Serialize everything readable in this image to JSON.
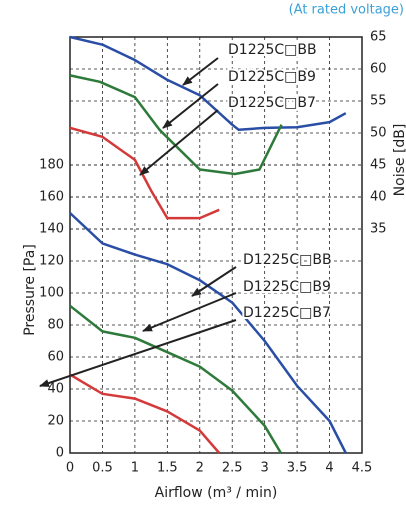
{
  "chart_data": {
    "type": "line",
    "note": "(At rated voltage)",
    "xlabel": "Airflow (m³ / min)",
    "ylabel": "Pressure [Pa]",
    "y2label": "Noise [dB]",
    "xlim": [
      0,
      4.5
    ],
    "xticks": [
      0,
      0.5,
      1,
      1.5,
      2,
      2.5,
      3,
      3.5,
      4,
      4.5
    ],
    "ylim": [
      0,
      260
    ],
    "yticks": [
      0,
      20,
      40,
      60,
      80,
      100,
      120,
      140,
      160,
      180
    ],
    "y2lim": [
      0,
      65
    ],
    "y2ticks": [
      35,
      40,
      45,
      50,
      55,
      60,
      65
    ],
    "grid": true,
    "series": [
      {
        "name": "D1225C□BB",
        "color": "#2a4ea6",
        "axis": "y2",
        "x": [
          0,
          0.5,
          1,
          1.5,
          2,
          2.5,
          2.6,
          3,
          3.5,
          4,
          4.25
        ],
        "values": [
          65,
          63.8,
          61.4,
          58.3,
          55.9,
          51.3,
          50.5,
          50.8,
          50.9,
          51.7,
          53.1
        ]
      },
      {
        "name": "D1225C□B9",
        "color": "#2e7a3a",
        "axis": "y2",
        "x": [
          0,
          0.46,
          1,
          1.38,
          2,
          2.54,
          2.92,
          3.26
        ],
        "values": [
          59,
          58,
          55.6,
          50.5,
          44.3,
          43.6,
          44.3,
          51.3
        ]
      },
      {
        "name": "D1225C□B7",
        "color": "#d43a3a",
        "axis": "y2",
        "x": [
          0,
          0.5,
          1,
          1.25,
          1.5,
          2,
          2.3
        ],
        "values": [
          50.8,
          49.4,
          45.8,
          41,
          36.7,
          36.7,
          38
        ]
      },
      {
        "name": "D1225C□BB",
        "color": "#2a4ea6",
        "x": [
          0,
          0.5,
          1,
          1.5,
          2,
          2.5,
          3,
          3.5,
          4,
          4.25
        ],
        "values": [
          150,
          131,
          124,
          118,
          108,
          94,
          70,
          42,
          20,
          0
        ]
      },
      {
        "name": "D1225C□B9",
        "color": "#2e7a3a",
        "x": [
          0,
          0.5,
          1,
          1.5,
          2,
          2.5,
          3,
          3.25
        ],
        "values": [
          92,
          76,
          72,
          63,
          54,
          39,
          17,
          0
        ]
      },
      {
        "name": "D1225C□B7",
        "color": "#d43a3a",
        "x": [
          0,
          0.5,
          1,
          1.5,
          2,
          2.3
        ],
        "values": [
          49,
          37,
          34,
          26,
          14,
          0
        ]
      }
    ]
  }
}
